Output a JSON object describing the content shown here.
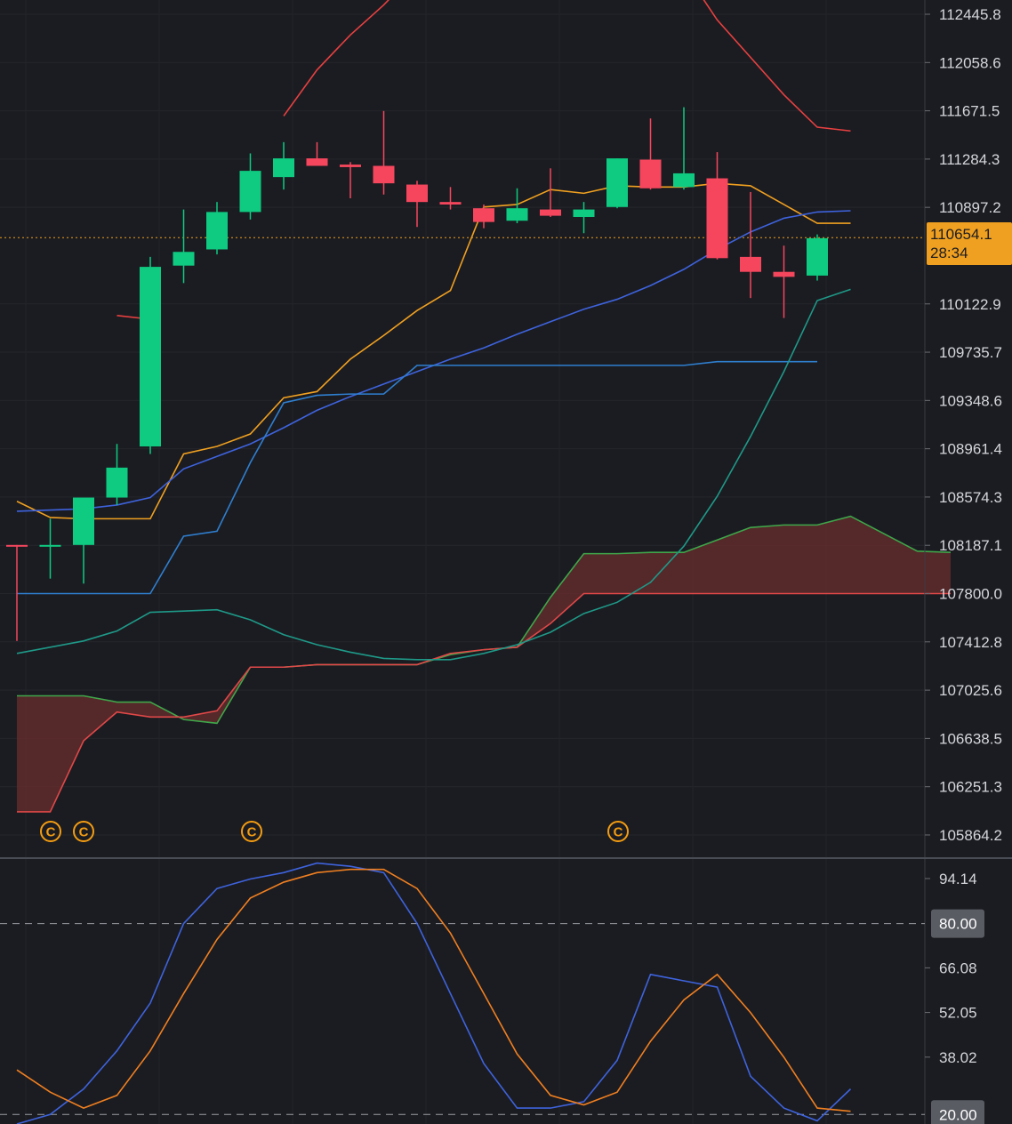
{
  "chart_data": [
    {
      "type": "candlestick",
      "ylim": [
        105700,
        112560
      ],
      "price_ticks": [
        "112445.8",
        "112058.6",
        "111671.5",
        "111284.3",
        "110897.2",
        "110122.9",
        "109735.7",
        "109348.6",
        "108961.4",
        "108574.3",
        "108187.1",
        "107800.0",
        "107412.8",
        "107025.6",
        "106638.5",
        "106251.3",
        "105864.2"
      ],
      "current_price": {
        "value": 110654.1,
        "label": "110654.1",
        "countdown": "28:34"
      },
      "colors": {
        "up": "#0ecb81",
        "down": "#f6465d",
        "kijun": "#f0a020",
        "ema": "#3e63dd",
        "tenkan": "#2f7fd0",
        "chikou": "#1e9988",
        "bb_upper": "#e84040",
        "cloud_fill": "#6a2c2e"
      },
      "candles": [
        {
          "o": 108190,
          "h": 108190,
          "l": 107420,
          "c": 108180
        },
        {
          "o": 108180,
          "h": 108400,
          "l": 107920,
          "c": 108190
        },
        {
          "o": 108190,
          "h": 108570,
          "l": 107880,
          "c": 108570
        },
        {
          "o": 108570,
          "h": 109000,
          "l": 108510,
          "c": 108810
        },
        {
          "o": 108980,
          "h": 110500,
          "l": 108920,
          "c": 110420
        },
        {
          "o": 110430,
          "h": 110880,
          "l": 110290,
          "c": 110540
        },
        {
          "o": 110560,
          "h": 110940,
          "l": 110520,
          "c": 110860
        },
        {
          "o": 110860,
          "h": 111330,
          "l": 110800,
          "c": 111190
        },
        {
          "o": 111140,
          "h": 111420,
          "l": 111040,
          "c": 111290
        },
        {
          "o": 111290,
          "h": 111420,
          "l": 111230,
          "c": 111230
        },
        {
          "o": 111240,
          "h": 111260,
          "l": 110970,
          "c": 111220
        },
        {
          "o": 111230,
          "h": 111670,
          "l": 111000,
          "c": 111090
        },
        {
          "o": 111080,
          "h": 111110,
          "l": 110740,
          "c": 110940
        },
        {
          "o": 110940,
          "h": 111060,
          "l": 110880,
          "c": 110920
        },
        {
          "o": 110890,
          "h": 110920,
          "l": 110730,
          "c": 110780
        },
        {
          "o": 110790,
          "h": 111050,
          "l": 110770,
          "c": 110890
        },
        {
          "o": 110880,
          "h": 111210,
          "l": 110820,
          "c": 110830
        },
        {
          "o": 110820,
          "h": 110940,
          "l": 110690,
          "c": 110880
        },
        {
          "o": 110900,
          "h": 111290,
          "l": 110890,
          "c": 111290
        },
        {
          "o": 111280,
          "h": 111610,
          "l": 111040,
          "c": 111050
        },
        {
          "o": 111060,
          "h": 111700,
          "l": 111040,
          "c": 111170
        },
        {
          "o": 111130,
          "h": 111340,
          "l": 110480,
          "c": 110490
        },
        {
          "o": 110500,
          "h": 111020,
          "l": 110170,
          "c": 110380
        },
        {
          "o": 110380,
          "h": 110590,
          "l": 110010,
          "c": 110340
        },
        {
          "o": 110350,
          "h": 110680,
          "l": 110310,
          "c": 110650
        }
      ],
      "lines": {
        "bb_upper": [
          null,
          null,
          null,
          110030,
          110000,
          null,
          null,
          null,
          111630,
          112000,
          112280,
          112520,
          112800,
          112980,
          113180,
          113330,
          113480,
          113600,
          113650,
          113500,
          112800,
          112400,
          112100,
          111800,
          111540,
          111510
        ],
        "kijun": [
          108540,
          108410,
          108400,
          108400,
          108400,
          108920,
          108980,
          109080,
          109370,
          109420,
          109680,
          109870,
          110070,
          110230,
          110900,
          110920,
          111040,
          111010,
          111070,
          111060,
          111060,
          111090,
          111070,
          110920,
          110770,
          110770
        ],
        "ema": [
          108460,
          108470,
          108480,
          108510,
          108570,
          108800,
          108900,
          109000,
          109130,
          109270,
          109380,
          109480,
          109580,
          109680,
          109770,
          109880,
          109980,
          110080,
          110160,
          110270,
          110400,
          110560,
          110700,
          110810,
          110860,
          110870
        ],
        "tenkan": [
          107800,
          107800,
          107800,
          107800,
          107800,
          108260,
          108300,
          108850,
          109330,
          109390,
          109400,
          109400,
          109630,
          109630,
          109630,
          109630,
          109630,
          109630,
          109630,
          109630,
          109630,
          109660,
          109660,
          109660,
          109660
        ],
        "chikou": [
          107320,
          107370,
          107420,
          107500,
          107650,
          107660,
          107670,
          107590,
          107470,
          107390,
          107330,
          107280,
          107270,
          107270,
          107320,
          107390,
          107490,
          107640,
          107730,
          107890,
          108180,
          108580,
          109060,
          109580,
          110150,
          110240
        ],
        "span_a": [
          106980,
          106980,
          106980,
          106930,
          106930,
          106790,
          106760,
          107210,
          107210,
          107230,
          107230,
          107230,
          107230,
          107310,
          107350,
          107370,
          107770,
          108120,
          108120,
          108130,
          108130,
          108230,
          108330,
          108350,
          108350,
          108420,
          108280,
          108140,
          108130
        ],
        "span_b": [
          106050,
          106050,
          106620,
          106850,
          106810,
          106810,
          106860,
          107210,
          107210,
          107230,
          107230,
          107230,
          107230,
          107320,
          107350,
          107370,
          107560,
          107800,
          107800,
          107800,
          107800,
          107800,
          107800,
          107800,
          107800,
          107800,
          107800,
          107800,
          107800
        ]
      },
      "markers": [
        {
          "index": 1,
          "symbol": "C"
        },
        {
          "index": 2,
          "symbol": "C"
        },
        {
          "index": 7,
          "symbol": "C"
        },
        {
          "index": 18,
          "symbol": "C"
        }
      ]
    },
    {
      "type": "line",
      "ylim": [
        17,
        100
      ],
      "ticks": [
        "94.14",
        "66.08",
        "52.05",
        "38.02"
      ],
      "level_labels": [
        "80.00",
        "20.00"
      ],
      "levels": [
        80,
        20
      ],
      "series": [
        {
          "color": "#3e63dd",
          "values": [
            17,
            20,
            28,
            40,
            55,
            80,
            91,
            94,
            96,
            99,
            98,
            96,
            80,
            58,
            36,
            22,
            22,
            24,
            37,
            64,
            62,
            60,
            32,
            22,
            18,
            28
          ]
        },
        {
          "color": "#f07f20",
          "values": [
            34,
            27,
            22,
            26,
            40,
            58,
            75,
            88,
            93,
            96,
            97,
            97,
            91,
            77,
            58,
            39,
            26,
            23,
            27,
            43,
            56,
            64,
            52,
            38,
            22,
            21
          ]
        }
      ]
    }
  ]
}
